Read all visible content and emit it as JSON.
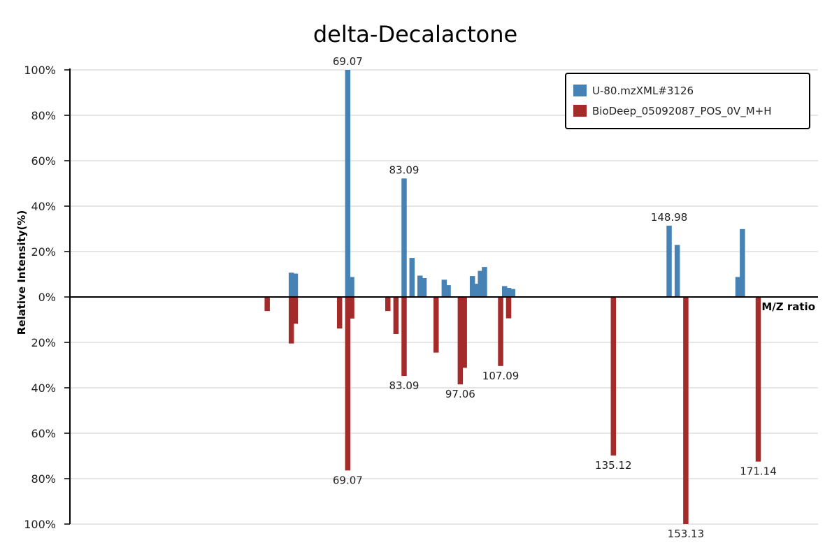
{
  "chart_data": {
    "type": "bar",
    "title": "delta-Decalactone",
    "xlabel": "M/Z ratio",
    "ylabel": "Relative Intensity(%)",
    "xlim": [
      0,
      186
    ],
    "ylim": [
      -100,
      100
    ],
    "y_ticks": [
      {
        "value": 100,
        "label": "100%"
      },
      {
        "value": 80,
        "label": "80%"
      },
      {
        "value": 60,
        "label": "60%"
      },
      {
        "value": 40,
        "label": "40%"
      },
      {
        "value": 20,
        "label": "20%"
      },
      {
        "value": 0,
        "label": "0%"
      },
      {
        "value": -20,
        "label": "20%"
      },
      {
        "value": -40,
        "label": "40%"
      },
      {
        "value": -60,
        "label": "60%"
      },
      {
        "value": -80,
        "label": "80%"
      },
      {
        "value": -100,
        "label": "100%"
      }
    ],
    "grid": true,
    "legend_position": "top-right",
    "colors": {
      "query": "#4682b4",
      "reference": "#a52a2a"
    },
    "series": [
      {
        "name": "U-80.mzXML#3126",
        "color": "#4682b4",
        "peaks": [
          {
            "mz": 55.05,
            "intensity": 10.7
          },
          {
            "mz": 56.05,
            "intensity": 10.3
          },
          {
            "mz": 69.07,
            "intensity": 100,
            "label": "69.07"
          },
          {
            "mz": 70.06,
            "intensity": 8.8
          },
          {
            "mz": 83.09,
            "intensity": 52.2,
            "label": "83.09"
          },
          {
            "mz": 85.06,
            "intensity": 17.2
          },
          {
            "mz": 87.05,
            "intensity": 9.4
          },
          {
            "mz": 88.05,
            "intensity": 8.3
          },
          {
            "mz": 93.06,
            "intensity": 7.6
          },
          {
            "mz": 94.05,
            "intensity": 5.2
          },
          {
            "mz": 100.07,
            "intensity": 9.2
          },
          {
            "mz": 101.07,
            "intensity": 5.8
          },
          {
            "mz": 102.07,
            "intensity": 11.5
          },
          {
            "mz": 103.07,
            "intensity": 13.2
          },
          {
            "mz": 108.08,
            "intensity": 4.8
          },
          {
            "mz": 109.08,
            "intensity": 4.0
          },
          {
            "mz": 110.08,
            "intensity": 3.5
          },
          {
            "mz": 148.98,
            "intensity": 31.4,
            "label": "148.98"
          },
          {
            "mz": 151.0,
            "intensity": 22.9
          },
          {
            "mz": 166.1,
            "intensity": 8.8
          },
          {
            "mz": 167.2,
            "intensity": 29.9
          }
        ]
      },
      {
        "name": "BioDeep_05092087_POS_0V_M+H",
        "color": "#a52a2a",
        "peaks": [
          {
            "mz": 49.05,
            "intensity": 6.2
          },
          {
            "mz": 55.05,
            "intensity": 20.5
          },
          {
            "mz": 56.05,
            "intensity": 11.8
          },
          {
            "mz": 67.05,
            "intensity": 13.9
          },
          {
            "mz": 69.07,
            "intensity": 76.4,
            "label": "69.07"
          },
          {
            "mz": 70.06,
            "intensity": 9.5
          },
          {
            "mz": 79.05,
            "intensity": 6.2
          },
          {
            "mz": 81.07,
            "intensity": 16.3
          },
          {
            "mz": 83.09,
            "intensity": 34.8,
            "label": "83.09"
          },
          {
            "mz": 91.05,
            "intensity": 24.5
          },
          {
            "mz": 97.06,
            "intensity": 38.5,
            "label": "97.06"
          },
          {
            "mz": 98.07,
            "intensity": 31.2
          },
          {
            "mz": 107.09,
            "intensity": 30.4,
            "label": "107.09"
          },
          {
            "mz": 109.08,
            "intensity": 9.4
          },
          {
            "mz": 135.12,
            "intensity": 69.8,
            "label": "135.12"
          },
          {
            "mz": 153.13,
            "intensity": 100,
            "label": "153.13"
          },
          {
            "mz": 171.14,
            "intensity": 72.5,
            "label": "171.14"
          }
        ]
      }
    ]
  }
}
